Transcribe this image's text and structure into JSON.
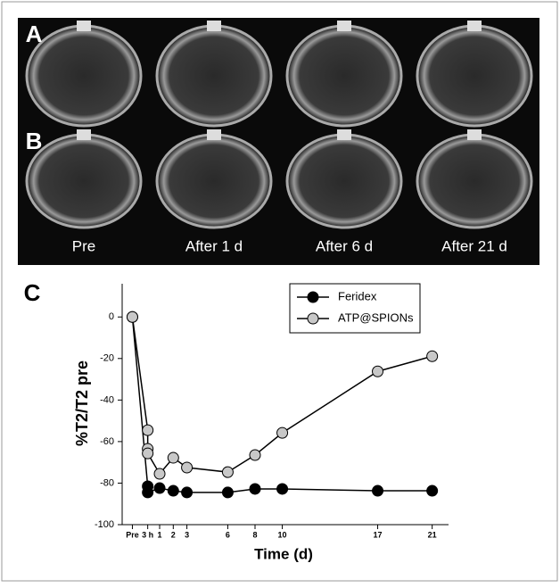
{
  "panels": {
    "row_labels": [
      "A",
      "B"
    ],
    "column_labels": [
      "Pre",
      "After 1 d",
      "After 6 d",
      "After 21 d"
    ],
    "panel_label": "C"
  },
  "chart_data": {
    "type": "line",
    "x_label": "Time (d)",
    "y_label": "%T2/T2 pre",
    "xlim": [
      -1.75,
      22.2
    ],
    "ylim": [
      -100,
      16
    ],
    "xticks": [
      {
        "value": -1,
        "label": "Pre"
      },
      {
        "value": 0.125,
        "label": "3 h"
      },
      1,
      2,
      3,
      6,
      8,
      10,
      17,
      21
    ],
    "yticks": [
      0,
      -20,
      -40,
      -60,
      -80,
      -100
    ],
    "legend": "top-right",
    "series": [
      {
        "name": "Feridex",
        "color": "#000000",
        "x": [
          -1,
          0.125,
          0.125,
          1,
          2,
          3,
          6,
          8,
          10,
          17,
          21
        ],
        "values": [
          0,
          -81.5,
          -84.5,
          -82.4,
          -83.7,
          -84.5,
          -84.5,
          -82.8,
          -82.8,
          -83.7,
          -83.7
        ]
      },
      {
        "name": "ATP@SPIONs",
        "color": "#c8c8c8",
        "x": [
          -1,
          0.125,
          0.125,
          0.125,
          1,
          2,
          3,
          6,
          8,
          10,
          17,
          21
        ],
        "values": [
          0,
          -54.5,
          -63.5,
          -65.7,
          -75.5,
          -67.8,
          -72.5,
          -74.7,
          -66.5,
          -55.8,
          -26.2,
          -18.9
        ]
      }
    ]
  }
}
